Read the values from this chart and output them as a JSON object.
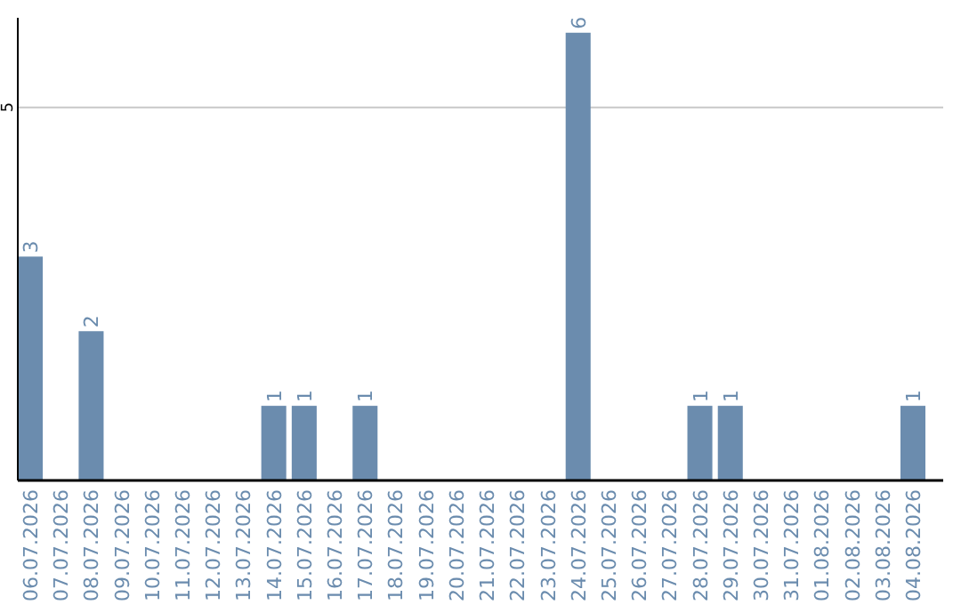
{
  "chart_data": {
    "type": "bar",
    "categories": [
      "06.07.2026",
      "07.07.2026",
      "08.07.2026",
      "09.07.2026",
      "10.07.2026",
      "11.07.2026",
      "12.07.2026",
      "13.07.2026",
      "14.07.2026",
      "15.07.2026",
      "16.07.2026",
      "17.07.2026",
      "18.07.2026",
      "19.07.2026",
      "20.07.2026",
      "21.07.2026",
      "22.07.2026",
      "23.07.2026",
      "24.07.2026",
      "25.07.2026",
      "26.07.2026",
      "27.07.2026",
      "28.07.2026",
      "29.07.2026",
      "30.07.2026",
      "31.07.2026",
      "01.08.2026",
      "02.08.2026",
      "03.08.2026",
      "04.08.2026"
    ],
    "values": [
      3,
      0,
      2,
      0,
      0,
      0,
      0,
      0,
      1,
      1,
      0,
      1,
      0,
      0,
      0,
      0,
      0,
      0,
      6,
      0,
      0,
      0,
      1,
      1,
      0,
      0,
      0,
      0,
      0,
      1
    ],
    "value_labels": [
      "3",
      null,
      "2",
      null,
      null,
      null,
      null,
      null,
      "1",
      "1",
      null,
      "1",
      null,
      null,
      null,
      null,
      null,
      null,
      "6",
      null,
      null,
      null,
      "1",
      "1",
      null,
      null,
      null,
      null,
      null,
      "1"
    ],
    "color": "#6b8cae",
    "ylim": [
      0,
      6.2
    ],
    "yticks": [
      5
    ],
    "grid": "y"
  }
}
